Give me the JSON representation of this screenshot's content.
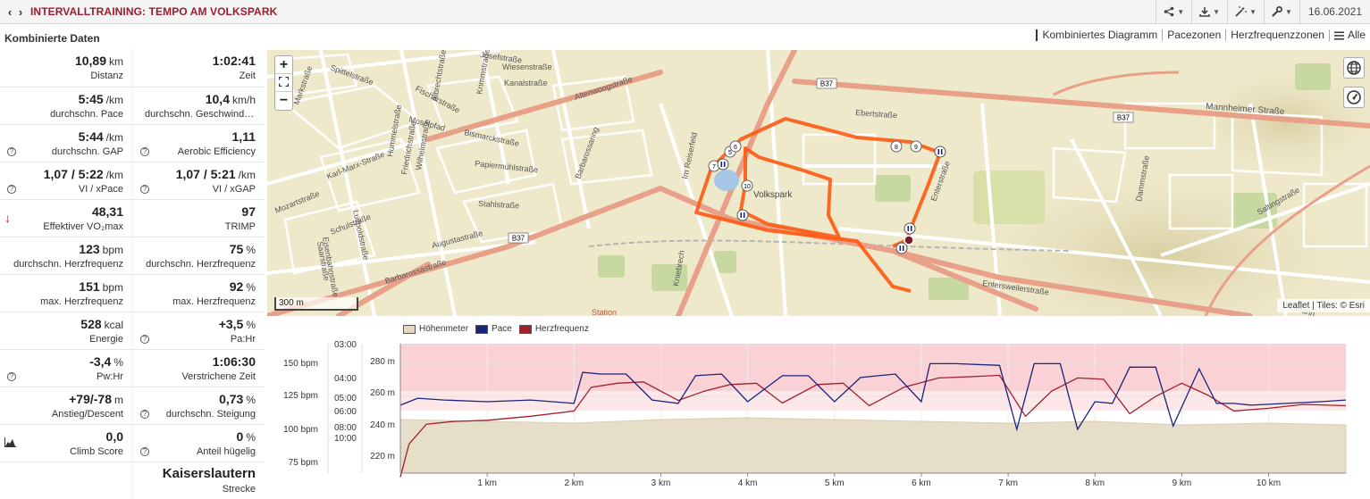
{
  "header": {
    "title": "INTERVALLTRAINING: TEMPO AM VOLKSPARK",
    "date": "16.06.2021"
  },
  "panel": {
    "title": "Kombinierte Daten"
  },
  "stats": [
    [
      {
        "value": "10,89",
        "unit": "km",
        "label": "Distanz"
      },
      {
        "value": "1:02:41",
        "unit": "",
        "label": "Zeit"
      }
    ],
    [
      {
        "value": "5:45",
        "unit": "/km",
        "label": "durchschn. Pace"
      },
      {
        "value": "10,4",
        "unit": "km/h",
        "label": "durchschn. Geschwindigkeit"
      }
    ],
    [
      {
        "value": "5:44",
        "unit": "/km",
        "label": "durchschn. GAP"
      },
      {
        "value": "1,11",
        "unit": "",
        "label": "Aerobic Efficiency"
      }
    ],
    [
      {
        "value": "1,07 / 5:22",
        "unit": "/km",
        "label": "VI / xPace"
      },
      {
        "value": "1,07 / 5:21",
        "unit": "/km",
        "label": "VI / xGAP"
      }
    ],
    [
      {
        "value": "48,31",
        "unit": "",
        "label": "Effektiver VO₂max"
      },
      {
        "value": "97",
        "unit": "",
        "label": "TRIMP"
      }
    ],
    [
      {
        "value": "123",
        "unit": "bpm",
        "label": "durchschn. Herzfrequenz"
      },
      {
        "value": "75",
        "unit": "%",
        "label": "durchschn. Herzfrequenz"
      }
    ],
    [
      {
        "value": "151",
        "unit": "bpm",
        "label": "max. Herzfrequenz"
      },
      {
        "value": "92",
        "unit": "%",
        "label": "max. Herzfrequenz"
      }
    ],
    [
      {
        "value": "528",
        "unit": "kcal",
        "label": "Energie"
      },
      {
        "value": "+3,5",
        "unit": "%",
        "label": "Pa:Hr"
      }
    ],
    [
      {
        "value": "-3,4",
        "unit": "%",
        "label": "Pw:Hr"
      },
      {
        "value": "1:06:30",
        "unit": "",
        "label": "Verstrichene Zeit"
      }
    ],
    [
      {
        "value": "+79/-78",
        "unit": "m",
        "label": "Anstieg/Descent"
      },
      {
        "value": "0,73",
        "unit": "%",
        "label": "durchschn. Steigung"
      }
    ],
    [
      {
        "value": "0,0",
        "unit": "",
        "label": "Climb Score"
      },
      {
        "value": "0",
        "unit": "%",
        "label": "Anteil hügelig"
      }
    ],
    [
      {
        "value": "",
        "unit": "",
        "label": ""
      },
      {
        "value": "Kaiserslautern",
        "unit": "",
        "label": "Strecke"
      }
    ]
  ],
  "tabs": [
    "Kombiniertes Diagramm",
    "Pacezonen",
    "Herzfrequenzzonen",
    "Alle"
  ],
  "map": {
    "scale": "300 m",
    "attribution": "Leaflet | Tiles: © Esri",
    "park": "Volkspark",
    "streets": [
      "Spittelstraße",
      "Josefstraße",
      "Wiesenstraße",
      "Kanalstraße",
      "Altenwoogstraße",
      "Mannheimer Straße",
      "Ebertstraße",
      "Fischerstraße",
      "Albrechtstraße",
      "Krimmstraße",
      "Moselpfad",
      "Bismarckstraße",
      "Papiermühlstraße",
      "Stahlstraße",
      "Barbarossaring",
      "Karl-Marx-Straße",
      "Mozartstraße",
      "Schulstraße",
      "Eisenbahnstraße",
      "Saarstraße",
      "Luitpoldstraße",
      "Augustastraße",
      "Barbarossastraße",
      "Im Reiserfeld",
      "Kniebrech",
      "Enterstraße",
      "Entersweilerstraße",
      "Dammstraße",
      "Saltingstraße",
      "Velmann",
      "Station",
      "Hummelstraße",
      "Wilhelmstraße",
      "Friedrichstraße",
      "Markstraße"
    ],
    "road_labels": [
      "B37",
      "B37",
      "B37"
    ],
    "markers": [
      "5",
      "6",
      "7",
      "8",
      "9",
      "10"
    ]
  },
  "chart_data": {
    "type": "line",
    "legend": [
      "Höhenmeter",
      "Pace",
      "Herzfrequenz"
    ],
    "x_ticks": [
      "1 km",
      "2 km",
      "3 km",
      "4 km",
      "5 km",
      "6 km",
      "7 km",
      "8 km",
      "9 km",
      "10 km"
    ],
    "xlim": [
      0,
      10.89
    ],
    "hr_axis": {
      "ticks": [
        "150 bpm",
        "125 bpm",
        "100 bpm",
        "75 bpm"
      ]
    },
    "pace_axis": {
      "ticks": [
        "03:00",
        "04:00",
        "05:00",
        "06:00",
        "08:00",
        "10:00"
      ]
    },
    "elev_axis": {
      "ticks": [
        "280 m",
        "260 m",
        "240 m",
        "220 m"
      ]
    },
    "series": [
      {
        "name": "Herzfrequenz",
        "color": "#a31f2e",
        "x": [
          0,
          0.1,
          0.3,
          0.6,
          1,
          1.5,
          2,
          2.2,
          2.5,
          2.8,
          3.2,
          3.5,
          3.8,
          4.1,
          4.4,
          4.8,
          5.1,
          5.4,
          5.8,
          6.2,
          6.6,
          6.9,
          7.2,
          7.5,
          7.8,
          8.1,
          8.4,
          8.7,
          9,
          9.3,
          9.6,
          10,
          10.4,
          10.89
        ],
        "values": [
          70,
          95,
          110,
          112,
          113,
          116,
          120,
          138,
          141,
          142,
          128,
          135,
          140,
          141,
          126,
          140,
          141,
          124,
          138,
          145,
          146,
          147,
          116,
          135,
          145,
          144,
          118,
          131,
          141,
          132,
          120,
          122,
          125,
          124
        ]
      },
      {
        "name": "Pace",
        "color": "#1a237e",
        "x": [
          0,
          0.2,
          0.5,
          1,
          1.5,
          2,
          2.1,
          2.3,
          2.6,
          2.9,
          3.2,
          3.4,
          3.7,
          4,
          4.4,
          4.7,
          5,
          5.3,
          5.7,
          6,
          6.1,
          6.4,
          6.9,
          7.1,
          7.3,
          7.6,
          7.8,
          8,
          8.2,
          8.4,
          8.7,
          8.9,
          9.2,
          9.4,
          9.6,
          9.8,
          10.2,
          10.6,
          10.89
        ],
        "values": [
          "05:50",
          "05:30",
          "05:35",
          "05:40",
          "05:35",
          "05:45",
          "04:15",
          "04:20",
          "04:20",
          "05:35",
          "05:45",
          "04:25",
          "04:20",
          "05:40",
          "04:25",
          "04:25",
          "05:40",
          "04:30",
          "04:20",
          "05:40",
          "03:50",
          "03:50",
          "03:55",
          "07:00",
          "03:50",
          "03:50",
          "07:00",
          "05:40",
          "05:45",
          "04:00",
          "04:00",
          "06:50",
          "04:05",
          "05:45",
          "05:45",
          "05:50",
          "05:45",
          "05:40",
          "05:35"
        ]
      },
      {
        "name": "Höhenmeter",
        "color": "#e2d9c0",
        "x": [
          0,
          1,
          2,
          3,
          4,
          5,
          6,
          7,
          8,
          9,
          10,
          10.89
        ],
        "values": [
          246,
          245,
          244,
          246,
          247,
          246,
          245,
          244,
          245,
          243,
          244,
          243
        ]
      }
    ]
  }
}
